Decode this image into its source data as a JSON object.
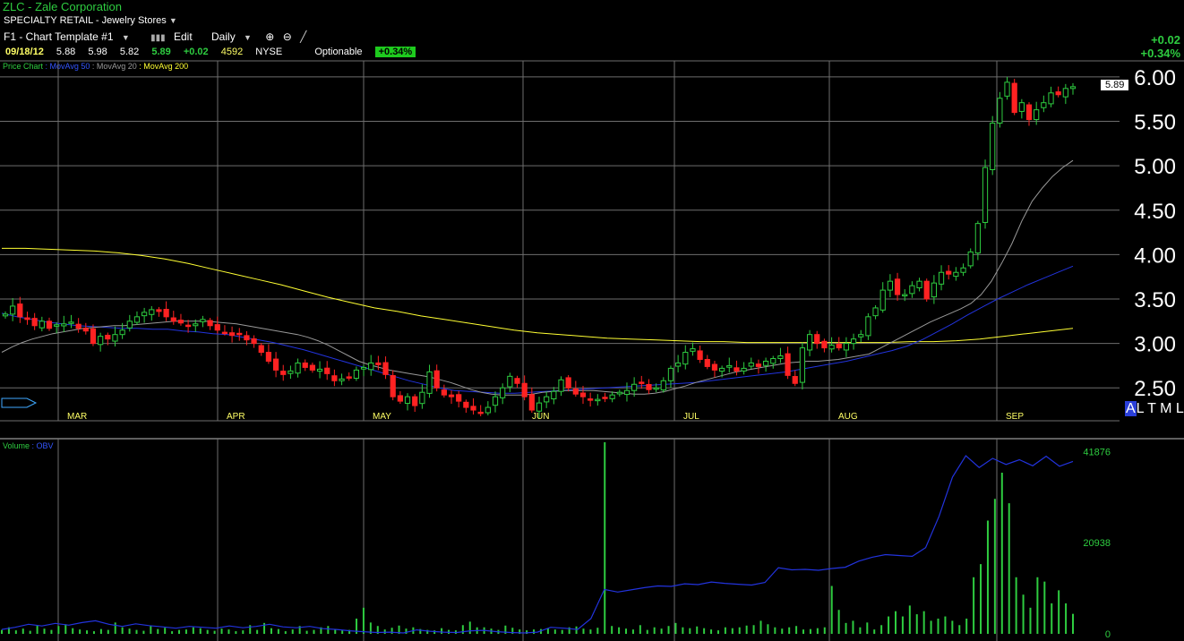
{
  "header": {
    "title": "ZLC - Zale Corporation",
    "sector": "SPECIALTY RETAIL - Jewelry Stores"
  },
  "toolbar": {
    "template": "F1 - Chart Template #1",
    "edit": "Edit",
    "interval": "Daily"
  },
  "quote": {
    "date": "09/18/12",
    "open": "5.88",
    "high": "5.98",
    "low": "5.82",
    "last": "5.89",
    "change": "+0.02",
    "volume": "4592",
    "exchange": "NYSE",
    "optionable": "Optionable",
    "change_pct": "+0.34%"
  },
  "summary": {
    "change": "+0.02",
    "change_pct": "+0.34%",
    "last_tag": "5.89"
  },
  "legend_price": [
    {
      "label": "Price Chart",
      "color": "#2ecc40"
    },
    {
      "label": "MovAvg 50",
      "color": "#3355ff"
    },
    {
      "label": "MovAvg 20",
      "color": "#999999"
    },
    {
      "label": "MovAvg 200",
      "color": "#ffff33"
    }
  ],
  "legend_volume": [
    {
      "label": "Volume",
      "color": "#2ecc40"
    },
    {
      "label": "OBV",
      "color": "#3355ff"
    }
  ],
  "timeframe": {
    "active": "A",
    "rest": "L T M L"
  },
  "colors": {
    "up": "#2ecc40",
    "down": "#ff2222",
    "grid": "#6e6e6e",
    "price_axis": "#ffffff",
    "month_label": "#ffff66",
    "ma20": "#999999",
    "ma50": "#2233dd",
    "ma200": "#ffff33",
    "obv": "#2233dd"
  },
  "chart_data": [
    {
      "type": "candlestick",
      "title": "ZLC - Zale Corporation",
      "ylim": [
        2.2,
        6.1
      ],
      "y_ticks": [
        "6.00",
        "5.50",
        "5.00",
        "4.50",
        "4.00",
        "3.50",
        "3.00",
        "2.50"
      ],
      "x_ticks": [
        "MAR",
        "APR",
        "MAY",
        "JUN",
        "JUL",
        "AUG",
        "SEP"
      ],
      "close": [
        3.33,
        3.42,
        3.3,
        3.27,
        3.2,
        3.25,
        3.17,
        3.21,
        3.22,
        3.24,
        3.17,
        3.14,
        3.0,
        3.08,
        3.05,
        3.1,
        3.15,
        3.25,
        3.3,
        3.35,
        3.38,
        3.36,
        3.3,
        3.25,
        3.23,
        3.2,
        3.22,
        3.27,
        3.2,
        3.15,
        3.12,
        3.09,
        3.1,
        3.04,
        3.0,
        2.9,
        2.8,
        2.7,
        2.65,
        2.69,
        2.78,
        2.73,
        2.7,
        2.71,
        2.66,
        2.58,
        2.6,
        2.62,
        2.7,
        2.73,
        2.78,
        2.76,
        2.65,
        2.4,
        2.35,
        2.4,
        2.3,
        2.45,
        2.68,
        2.5,
        2.42,
        2.4,
        2.35,
        2.28,
        2.25,
        2.22,
        2.28,
        2.4,
        2.5,
        2.63,
        2.55,
        2.4,
        2.25,
        2.33,
        2.4,
        2.46,
        2.59,
        2.5,
        2.43,
        2.4,
        2.36,
        2.37,
        2.39,
        2.42,
        2.45,
        2.47,
        2.54,
        2.55,
        2.48,
        2.5,
        2.58,
        2.72,
        2.78,
        2.9,
        2.94,
        2.82,
        2.74,
        2.7,
        2.72,
        2.75,
        2.69,
        2.72,
        2.78,
        2.74,
        2.8,
        2.83,
        2.86,
        2.64,
        2.55,
        2.95,
        3.1,
        3.0,
        2.95,
        2.98,
        2.95,
        3.0,
        3.05,
        3.1,
        3.3,
        3.4,
        3.6,
        3.7,
        3.55,
        3.55,
        3.65,
        3.7,
        3.5,
        3.68,
        3.8,
        3.78,
        3.8,
        3.85,
        4.03,
        4.35,
        4.98,
        5.48,
        5.76,
        5.94,
        5.6,
        5.71,
        5.52,
        5.63,
        5.71,
        5.82,
        5.8,
        5.87,
        5.89
      ],
      "series": [
        {
          "name": "MovAvg 20",
          "values": [
            2.9,
            2.96,
            3.01,
            3.05,
            3.08,
            3.11,
            3.13,
            3.15,
            3.17,
            3.18,
            3.19,
            3.2,
            3.2,
            3.21,
            3.22,
            3.23,
            3.24,
            3.25,
            3.25,
            3.25,
            3.25,
            3.24,
            3.23,
            3.22,
            3.2,
            3.18,
            3.16,
            3.14,
            3.12,
            3.1,
            3.07,
            3.03,
            2.98,
            2.92,
            2.86,
            2.8,
            2.76,
            2.73,
            2.7,
            2.68,
            2.66,
            2.64,
            2.62,
            2.59,
            2.56,
            2.52,
            2.48,
            2.45,
            2.43,
            2.42,
            2.42,
            2.42,
            2.43,
            2.45,
            2.46,
            2.47,
            2.47,
            2.47,
            2.47,
            2.46,
            2.45,
            2.44,
            2.43,
            2.43,
            2.44,
            2.46,
            2.49,
            2.52,
            2.56,
            2.59,
            2.62,
            2.65,
            2.68,
            2.7,
            2.72,
            2.74,
            2.76,
            2.78,
            2.79,
            2.8,
            2.8,
            2.81,
            2.82,
            2.84,
            2.86,
            2.88,
            2.94,
            3.0,
            3.06,
            3.12,
            3.18,
            3.24,
            3.29,
            3.34,
            3.39,
            3.45,
            3.55,
            3.7,
            3.9,
            4.12,
            4.38,
            4.6,
            4.75,
            4.88,
            4.98,
            5.06
          ]
        },
        {
          "name": "MovAvg 50",
          "values": [
            3.34,
            3.3,
            3.27,
            3.24,
            3.22,
            3.2,
            3.19,
            3.18,
            3.17,
            3.17,
            3.16,
            3.16,
            3.14,
            3.13,
            3.11,
            3.1,
            3.07,
            3.04,
            3.01,
            2.97,
            2.93,
            2.88,
            2.83,
            2.78,
            2.73,
            2.68,
            2.63,
            2.58,
            2.54,
            2.5,
            2.47,
            2.46,
            2.45,
            2.44,
            2.44,
            2.45,
            2.46,
            2.47,
            2.48,
            2.49,
            2.5,
            2.51,
            2.52,
            2.53,
            2.54,
            2.55,
            2.56,
            2.58,
            2.6,
            2.62,
            2.64,
            2.66,
            2.68,
            2.71,
            2.74,
            2.77,
            2.8,
            2.84,
            2.88,
            2.92,
            2.97,
            3.04,
            3.13,
            3.22,
            3.32,
            3.41,
            3.5,
            3.58,
            3.66,
            3.73,
            3.8,
            3.87
          ]
        },
        {
          "name": "MovAvg 200",
          "values": [
            4.07,
            4.07,
            4.06,
            4.05,
            4.04,
            4.02,
            3.99,
            3.95,
            3.9,
            3.84,
            3.78,
            3.72,
            3.66,
            3.59,
            3.52,
            3.46,
            3.4,
            3.36,
            3.31,
            3.27,
            3.23,
            3.19,
            3.15,
            3.12,
            3.1,
            3.08,
            3.06,
            3.05,
            3.04,
            3.03,
            3.02,
            3.02,
            3.01,
            3.01,
            3.01,
            3.01,
            3.01,
            3.01,
            3.01,
            3.02,
            3.02,
            3.03,
            3.05,
            3.08,
            3.11,
            3.14,
            3.17
          ]
        }
      ]
    },
    {
      "type": "bar",
      "title": "Volume",
      "y_ticks": [
        "41876",
        "20938",
        "0"
      ],
      "ylim": [
        0,
        44000
      ],
      "volume": [
        900,
        1500,
        800,
        1200,
        700,
        2000,
        1200,
        900,
        1800,
        2200,
        1300,
        1000,
        800,
        600,
        1100,
        900,
        2600,
        1500,
        1200,
        900,
        700,
        1800,
        1100,
        1400,
        600,
        900,
        1000,
        1500,
        1300,
        900,
        700,
        1200,
        1000,
        600,
        800,
        2000,
        900,
        2500,
        1300,
        1100,
        600,
        1000,
        1800,
        700,
        900,
        1500,
        1800,
        1100,
        800,
        900,
        3500,
        6000,
        2600,
        1800,
        1000,
        1400,
        1900,
        1200,
        1500,
        1100,
        900,
        800,
        1300,
        900,
        800,
        2000,
        2800,
        1500,
        1500,
        1200,
        900,
        1900,
        1400,
        1000,
        800,
        1000,
        1100,
        1300,
        1000,
        900,
        1500,
        1700,
        1200,
        1000,
        1400,
        44000,
        1800,
        1500,
        1200,
        1000,
        2000,
        900,
        1500,
        1200,
        1800,
        2500,
        1500,
        1300,
        1700,
        1300,
        1000,
        800,
        1500,
        1300,
        1500,
        1900,
        2000,
        3000,
        2200,
        1500,
        1200,
        1500,
        1800,
        1000,
        1100,
        1300,
        1500,
        11000,
        5500,
        2500,
        3000,
        1500,
        2600,
        1000,
        2000,
        4000,
        5200,
        4000,
        6500,
        4500,
        5200,
        3000,
        3500,
        4000,
        3000,
        2000,
        3500,
        13000,
        16000,
        26000,
        31000,
        37000,
        30000,
        13000,
        9000,
        6000,
        13000,
        12000,
        7000,
        10000,
        7000,
        4592
      ],
      "series": [
        {
          "name": "OBV",
          "values": [
            1000,
            1500,
            2200,
            1800,
            2400,
            2000,
            2600,
            3000,
            2200,
            1700,
            2300,
            1900,
            1600,
            1300,
            1700,
            1500,
            1300,
            1800,
            1400,
            1700,
            2200,
            1600,
            1400,
            1700,
            1200,
            1000,
            700,
            500,
            300,
            400,
            200,
            900,
            600,
            400,
            300,
            700,
            800,
            500,
            300,
            200,
            400,
            1500,
            1300,
            1000,
            3500,
            10200,
            9600,
            10100,
            10600,
            11000,
            10900,
            11500,
            11300,
            11900,
            11600,
            11400,
            11200,
            11800,
            15200,
            14700,
            14800,
            14600,
            15000,
            15300,
            16700,
            17600,
            18200,
            18000,
            17800,
            19800,
            27000,
            36000,
            40900,
            38200,
            40300,
            38900,
            40000,
            38600,
            40800,
            38500,
            39600
          ]
        }
      ]
    }
  ]
}
